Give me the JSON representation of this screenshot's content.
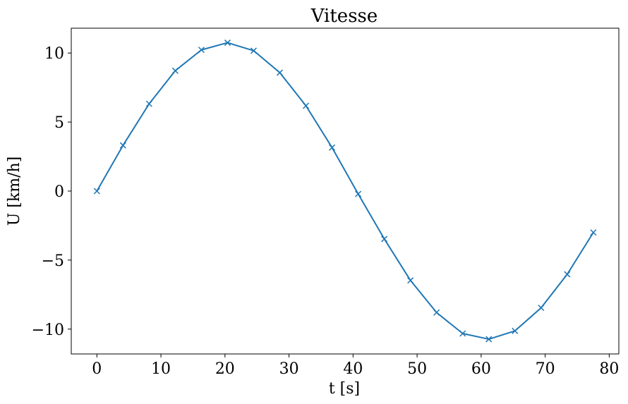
{
  "chart_data": {
    "type": "line",
    "title": "Vitesse",
    "xlabel": "t [s]",
    "ylabel": "U [km/h]",
    "xlim": [
      -4,
      81.5
    ],
    "ylim": [
      -11.8,
      11.8
    ],
    "x_ticks": [
      0,
      10,
      20,
      30,
      40,
      50,
      60,
      70,
      80
    ],
    "x_tick_labels": [
      "0",
      "10",
      "20",
      "30",
      "40",
      "50",
      "60",
      "70",
      "80"
    ],
    "y_ticks": [
      10,
      5,
      0,
      -5,
      -10
    ],
    "y_tick_labels": [
      "10",
      "5",
      "0",
      "−5",
      "−10"
    ],
    "grid": false,
    "legend": false,
    "series": [
      {
        "color": "#1f77b4",
        "marker": "x",
        "x": [
          0,
          4.08,
          8.16,
          12.24,
          16.32,
          20.4,
          24.48,
          28.56,
          32.64,
          36.72,
          40.8,
          44.88,
          48.96,
          53.04,
          57.12,
          61.2,
          65.28,
          69.36,
          73.44,
          77.52
        ],
        "y": [
          0.0,
          3.31,
          6.32,
          8.72,
          10.23,
          10.75,
          10.17,
          8.58,
          6.18,
          3.15,
          -0.21,
          -3.47,
          -6.47,
          -8.8,
          -10.32,
          -10.73,
          -10.13,
          -8.46,
          -6.03,
          -3.0
        ]
      }
    ]
  }
}
